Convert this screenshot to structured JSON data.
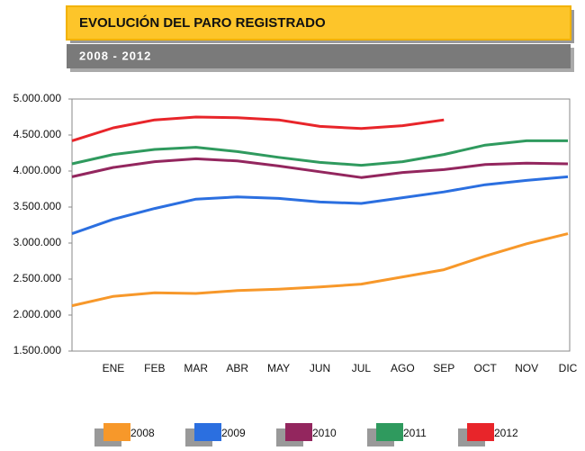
{
  "chart_data": {
    "type": "line",
    "title": "EVOLUCIÓN DEL PARO REGISTRADO",
    "subtitle": "2008 - 2012",
    "categories": [
      null,
      "ENE",
      "FEB",
      "MAR",
      "ABR",
      "MAY",
      "JUN",
      "JUL",
      "AGO",
      "SEP",
      "OCT",
      "NOV",
      "DIC"
    ],
    "series": [
      {
        "name": "2008",
        "color": "#f7982a",
        "values": [
          2130000,
          2260000,
          2310000,
          2300000,
          2340000,
          2360000,
          2390000,
          2430000,
          2530000,
          2630000,
          2820000,
          2990000,
          3130000
        ]
      },
      {
        "name": "2009",
        "color": "#2b6fe0",
        "values": [
          3130000,
          3330000,
          3480000,
          3610000,
          3640000,
          3620000,
          3570000,
          3550000,
          3630000,
          3710000,
          3810000,
          3870000,
          3920000
        ]
      },
      {
        "name": "2010",
        "color": "#93265e",
        "values": [
          3920000,
          4050000,
          4130000,
          4170000,
          4140000,
          4070000,
          3990000,
          3910000,
          3980000,
          4020000,
          4090000,
          4110000,
          4100000
        ]
      },
      {
        "name": "2011",
        "color": "#2f9a5e",
        "values": [
          4100000,
          4230000,
          4300000,
          4330000,
          4270000,
          4190000,
          4120000,
          4080000,
          4130000,
          4230000,
          4360000,
          4420000,
          4420000
        ]
      },
      {
        "name": "2012",
        "color": "#e8252a",
        "values": [
          4420000,
          4600000,
          4710000,
          4750000,
          4740000,
          4710000,
          4620000,
          4590000,
          4630000,
          4710000,
          null,
          null,
          null
        ]
      }
    ],
    "ylim": [
      1500000,
      5000000
    ],
    "yticks": [
      {
        "value": 1500000,
        "label": "1.500.000"
      },
      {
        "value": 2000000,
        "label": "2.000.000"
      },
      {
        "value": 2500000,
        "label": "2.500.000"
      },
      {
        "value": 3000000,
        "label": "3.000.000"
      },
      {
        "value": 3500000,
        "label": "3.500.000"
      },
      {
        "value": 4000000,
        "label": "4.000.000"
      },
      {
        "value": 4500000,
        "label": "4.500.000"
      },
      {
        "value": 5000000,
        "label": "5.000.000"
      }
    ],
    "grid": false,
    "legend": "bottom"
  }
}
